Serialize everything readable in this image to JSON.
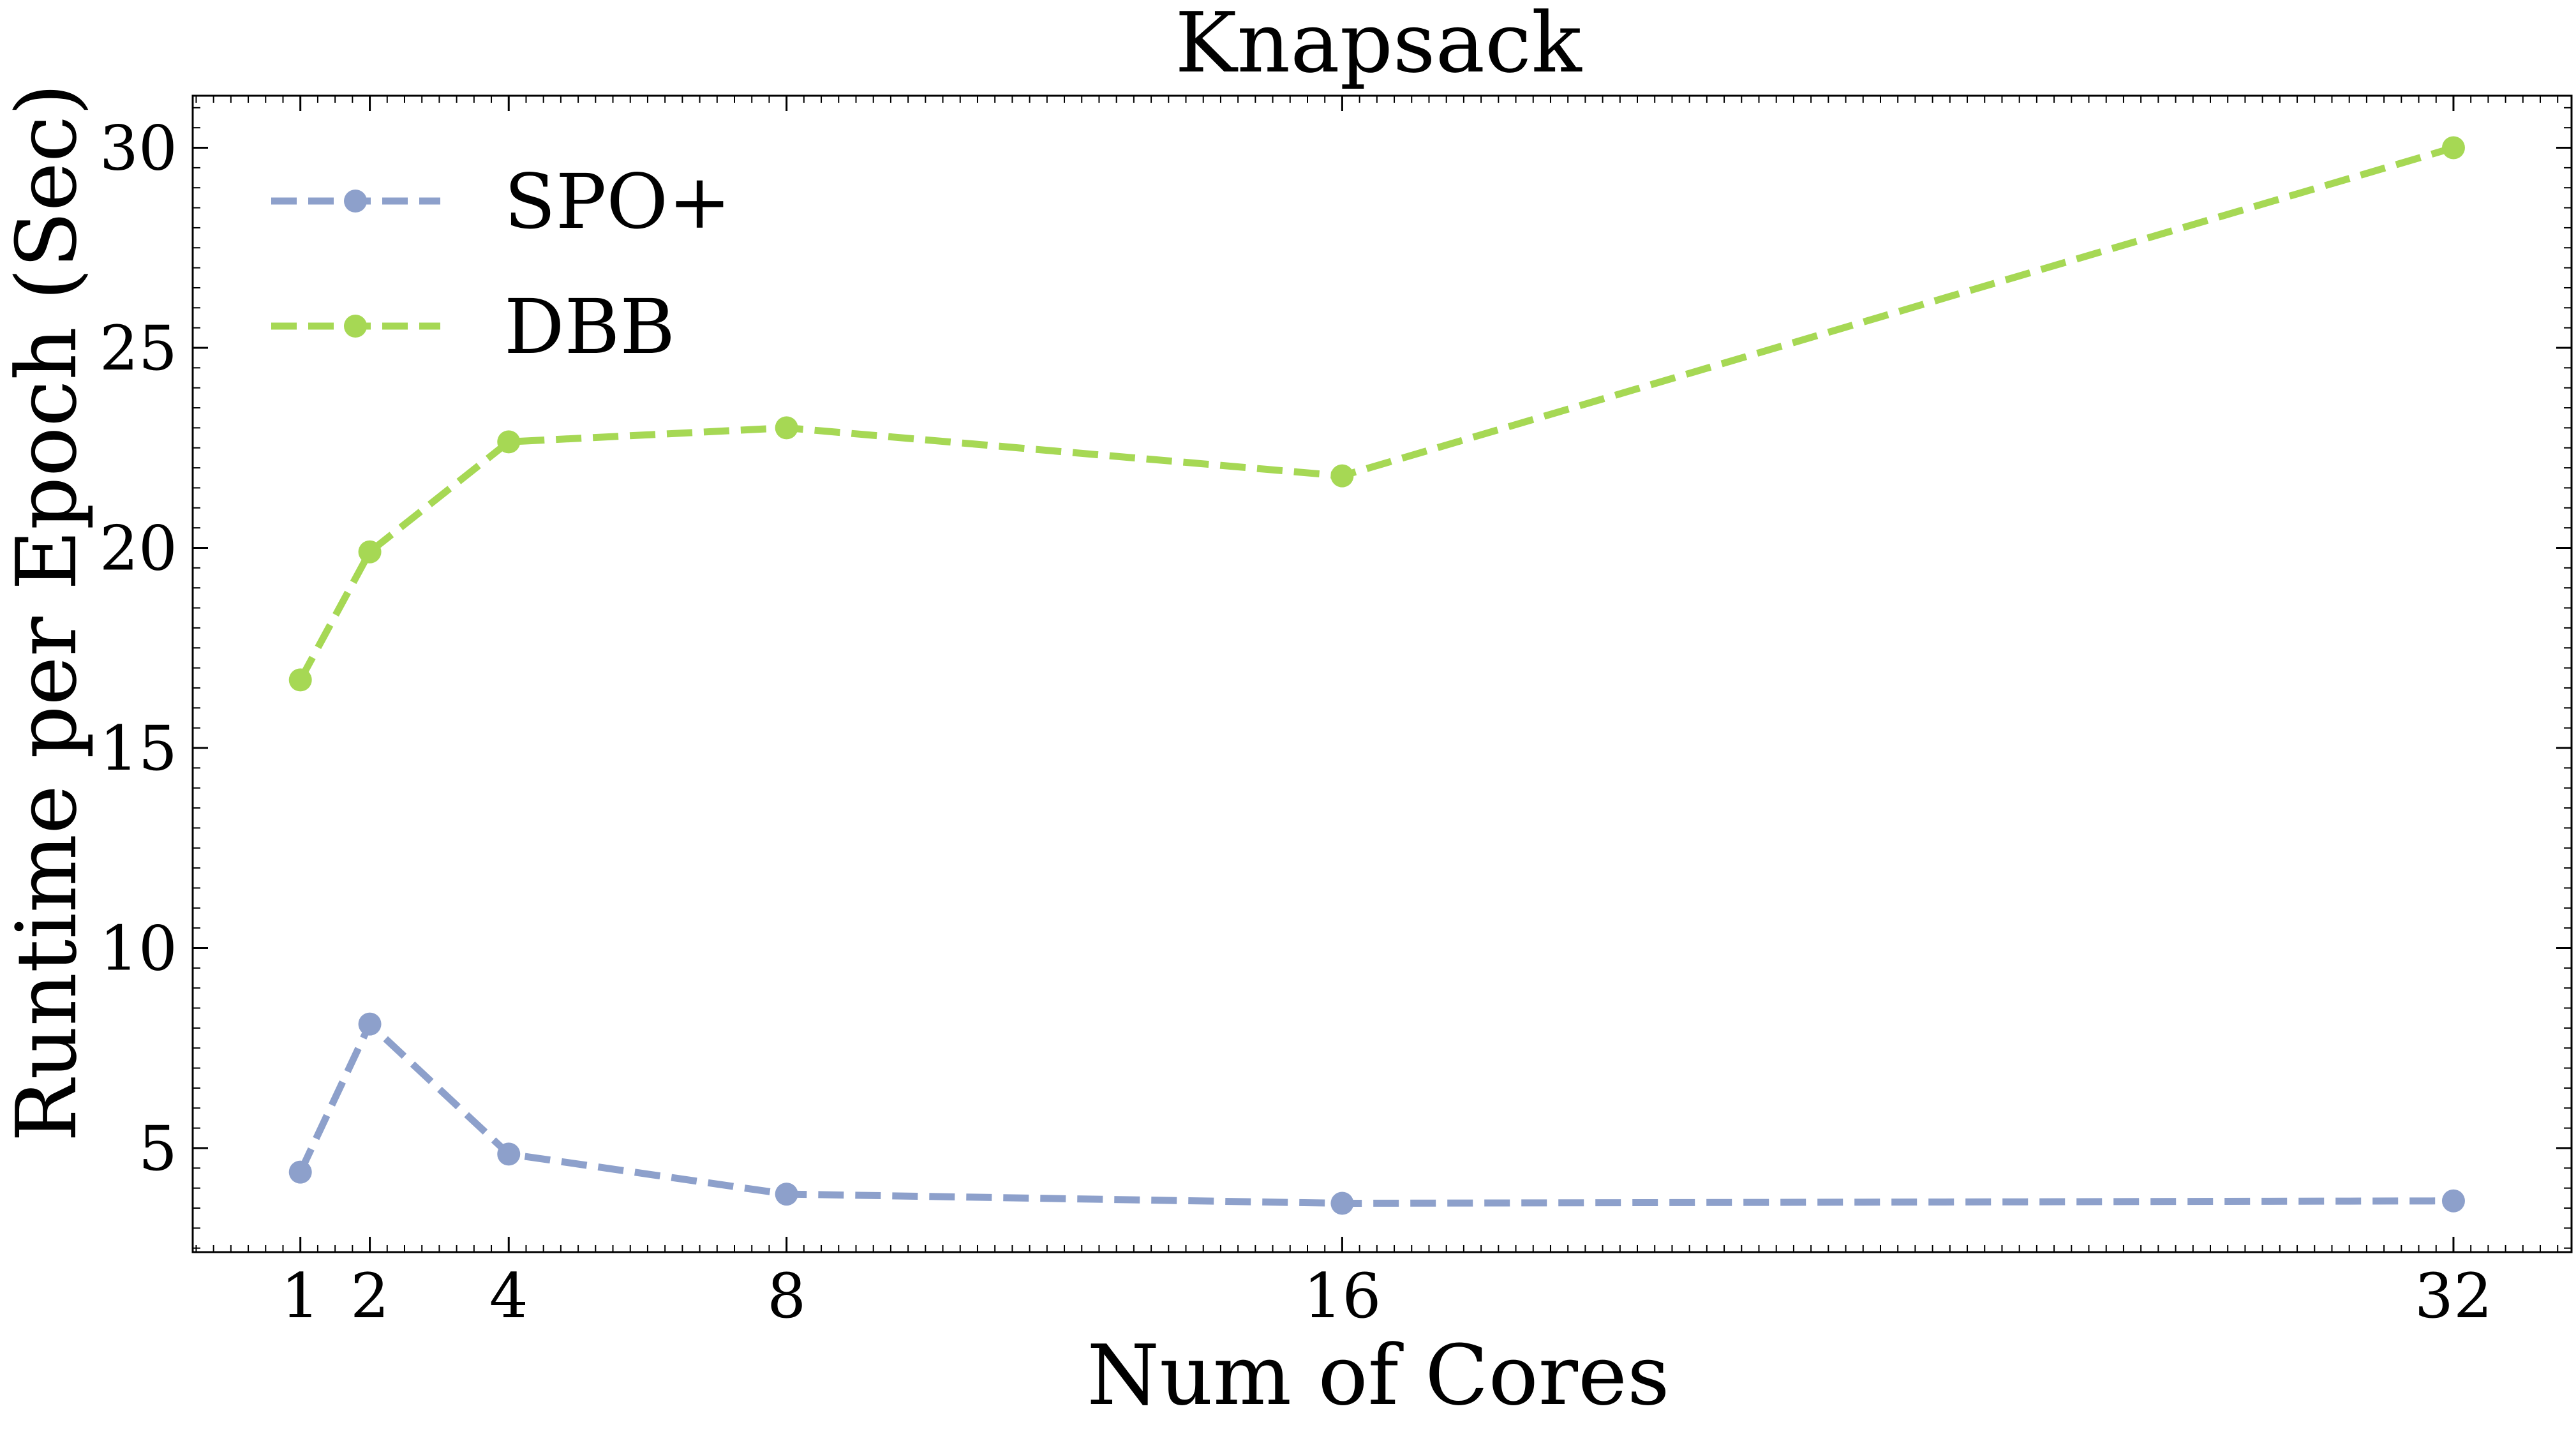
{
  "chart_data": {
    "type": "line",
    "title": "Knapsack",
    "xlabel": "Num of Cores",
    "ylabel": "Runtime per Epoch (Sec)",
    "x": [
      1,
      2,
      4,
      8,
      16,
      32
    ],
    "xticks": [
      1,
      2,
      4,
      8,
      16,
      32
    ],
    "xlim": [
      -0.55,
      33.7
    ],
    "ylim": [
      2.4,
      31.3
    ],
    "yticks": [
      5,
      10,
      15,
      20,
      25,
      30
    ],
    "grid": false,
    "legend_position": "top-left",
    "series": [
      {
        "name": "SPO+",
        "color": "#8da0cb",
        "values": [
          4.4,
          8.1,
          4.85,
          3.85,
          3.62,
          3.68
        ]
      },
      {
        "name": "DBB",
        "color": "#a6d854",
        "values": [
          16.7,
          19.9,
          22.65,
          23.0,
          21.8,
          30.0
        ]
      }
    ]
  }
}
